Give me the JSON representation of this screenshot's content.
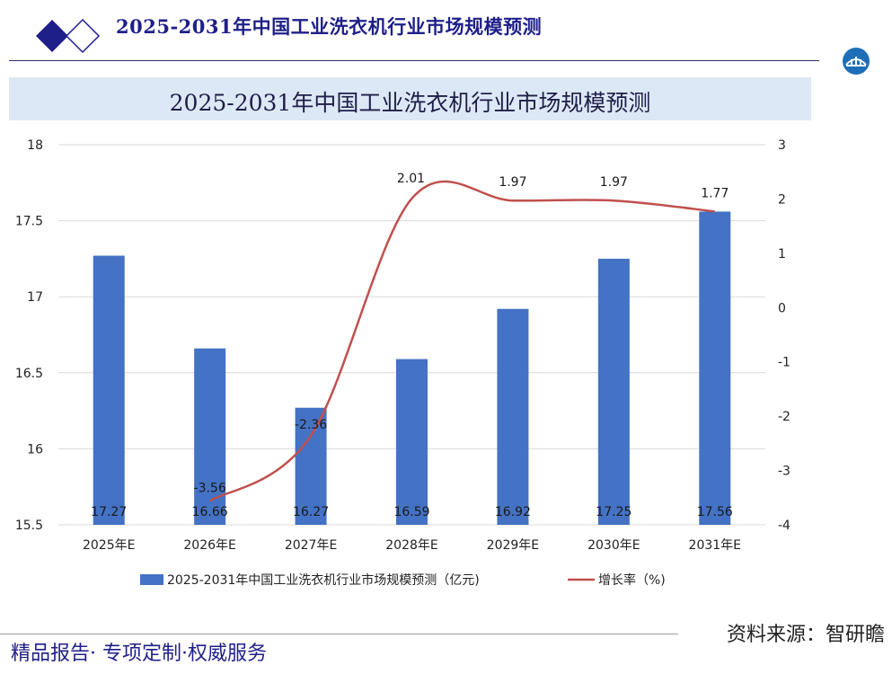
{
  "header": {
    "title": "2025-2031年中国工业洗衣机行业市场规模预测"
  },
  "footer": {
    "left_text": "精品报告· 专项定制·权威服务",
    "source_text": "资料来源：智研瞻"
  },
  "colors": {
    "bar": "#4472c4",
    "line": "#c0504d",
    "banner": "#dde8f6",
    "title": "#1f1f8a"
  },
  "icons": {
    "header_logo": "double-diamond-icon",
    "brand_badge": "bridge-logo-icon"
  },
  "chart_data": {
    "type": "bar",
    "title": "2025-2031年中国工业洗衣机行业市场规模预测",
    "categories": [
      "2025年E",
      "2026年E",
      "2027年E",
      "2028年E",
      "2029年E",
      "2030年E",
      "2031年E"
    ],
    "series": [
      {
        "name": "2025-2031年中国工业洗衣机行业市场规模预测（亿元)",
        "type": "bar",
        "axis": "left",
        "values": [
          17.27,
          16.66,
          16.27,
          16.59,
          16.92,
          17.25,
          17.56
        ],
        "labels": [
          "17.27",
          "16.66",
          "16.27",
          "16.59",
          "16.92",
          "17.25",
          "17.56"
        ]
      },
      {
        "name": "增长率（%)",
        "type": "line",
        "axis": "right",
        "smooth": true,
        "values": [
          null,
          -3.56,
          -2.36,
          2.01,
          1.97,
          1.97,
          1.77
        ],
        "labels": [
          "",
          "-3.56",
          "-2.36",
          "2.01",
          "1.97",
          "1.97",
          "1.77"
        ]
      }
    ],
    "y_left": {
      "min": 15.5,
      "max": 18,
      "ticks": [
        "15.5",
        "16",
        "16.5",
        "17",
        "17.5",
        "18"
      ]
    },
    "y_right": {
      "min": -4,
      "max": 3,
      "ticks": [
        "-4",
        "-3",
        "-2",
        "-1",
        "0",
        "1",
        "2",
        "3"
      ]
    },
    "grid": true,
    "legend_position": "bottom"
  }
}
